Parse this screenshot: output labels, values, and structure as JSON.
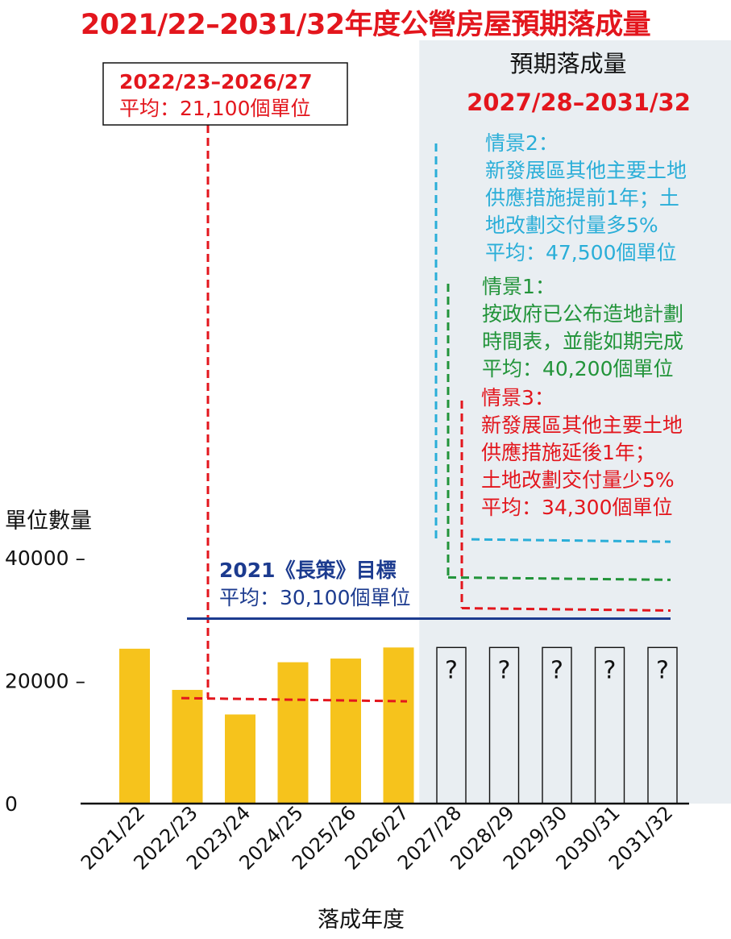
{
  "title": "2021/22–2031/32年度公營房屋預期落成量",
  "colors": {
    "title": "#e3161d",
    "bar": "#f6c31c",
    "target": "#1c3b8f",
    "scenario2": "#2aaed8",
    "scenario1": "#22943a",
    "scenario3": "#e3161d",
    "shade": "#e9eef2"
  },
  "chart_data": {
    "type": "bar",
    "ylabel": "單位數量",
    "xlabel": "落成年度",
    "ylim": [
      0,
      40000
    ],
    "yticks": [
      {
        "value": 0,
        "label": "0"
      },
      {
        "value": 20000,
        "label": "20000 –"
      },
      {
        "value": 40000,
        "label": "40000 –"
      }
    ],
    "categories": [
      "2021/22",
      "2022/23",
      "2023/24",
      "2024/25",
      "2025/26",
      "2026/27",
      "2027/28",
      "2028/29",
      "2029/30",
      "2030/31",
      "2031/32"
    ],
    "values": [
      25200,
      18500,
      14500,
      23000,
      23600,
      25400,
      null,
      null,
      null,
      null,
      null
    ],
    "unknown_mark": "?",
    "projection_box": {
      "title": "預期落成量",
      "period": "2027/28–2031/32"
    },
    "past_average": {
      "period": "2022/23–2026/27",
      "label": "平均：21,100個單位",
      "value": 21100
    },
    "target": {
      "title": "2021《長策》目標",
      "label": "平均：30,100個單位",
      "value": 30100
    },
    "scenarios": [
      {
        "key": "scenario2",
        "heading": "情景2：",
        "lines": [
          "新發展區其他主要土地",
          "供應措施提前1年；土",
          "地改劃交付量多5%",
          "平均：47,500個單位"
        ],
        "line_y": 43000
      },
      {
        "key": "scenario1",
        "heading": "情景1：",
        "lines": [
          "按政府已公布造地計劃",
          "時間表，並能如期完成",
          "平均：40,200個單位"
        ],
        "line_y": 36800
      },
      {
        "key": "scenario3",
        "heading": "情景3：",
        "lines": [
          "新發展區其他主要土地",
          "供應措施延後1年；",
          "土地改劃交付量少5%",
          "平均：34,300個單位"
        ],
        "line_y": 31800
      }
    ]
  }
}
